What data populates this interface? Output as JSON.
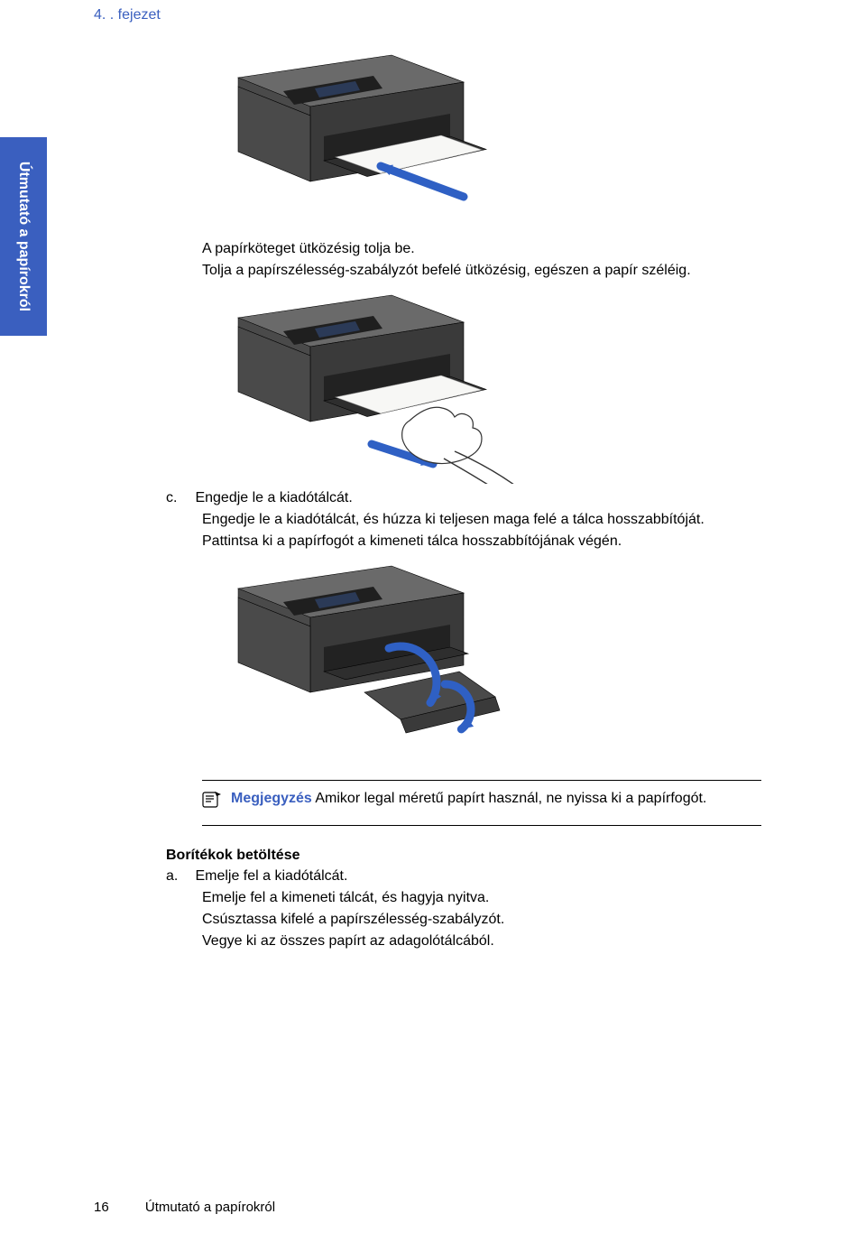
{
  "chapter_header": "4. . fejezet",
  "side_tab_label": "Útmutató a papírokról",
  "body": {
    "para1_line1": "A papírköteget ütközésig tolja be.",
    "para1_line2": "Tolja a papírszélesség-szabályzót befelé ütközésig, egészen a papír széléig.",
    "step_c_letter": "c.",
    "step_c_title": "Engedje le a kiadótálcát.",
    "step_c_line2": "Engedje le a kiadótálcát, és húzza ki teljesen maga felé a tálca hosszabbítóját.",
    "step_c_line3": "Pattintsa ki a papírfogót a kimeneti tálca hosszabbítójának végén.",
    "note_lead": "Megjegyzés",
    "note_rest": "   Amikor legal méretű papírt használ, ne nyissa ki a papírfogót.",
    "section_title": "Borítékok betöltése",
    "step_a_letter": "a.",
    "step_a_title": "Emelje fel a kiadótálcát.",
    "step_a_line2": "Emelje fel a kimeneti tálcát, és hagyja nyitva.",
    "step_a_line3": "Csúsztassa kifelé a papírszélesség-szabályzót.",
    "step_a_line4": "Vegye ki az összes papírt az adagolótálcából."
  },
  "footer": {
    "page_number": "16",
    "title": "Útmutató a papírokról"
  },
  "printer": {
    "body_w": 200,
    "body_h": 90,
    "colors": {
      "shell_dark": "#3a3a3a",
      "shell_mid": "#4a4a4a",
      "shell_light": "#6a6a6a",
      "tray": "#2e2e2e",
      "paper": "#f7f7f5",
      "panel": "#1f1f1f",
      "arrow": "#2f60c4",
      "hand": "#ffffff",
      "hand_stroke": "#333333"
    }
  }
}
